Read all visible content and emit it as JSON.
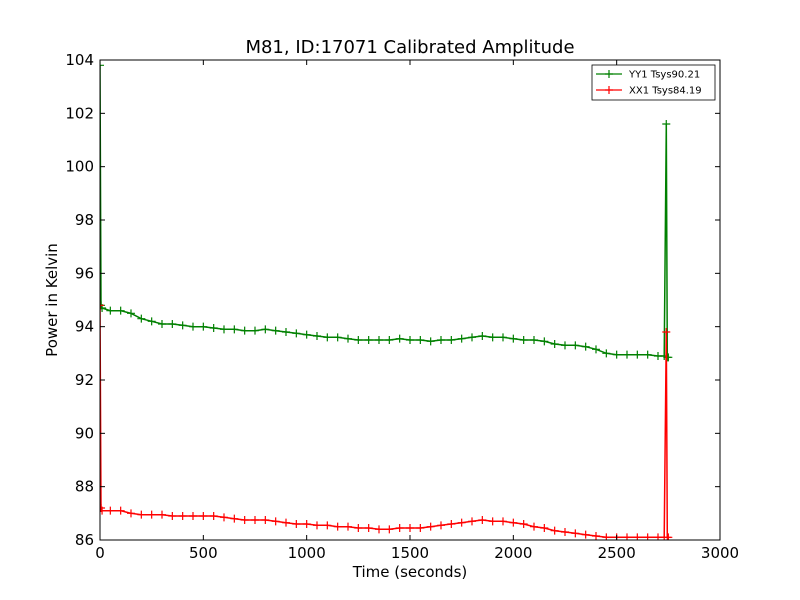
{
  "chart_data": {
    "type": "line",
    "title": "M81, ID:17071 Calibrated Amplitude",
    "xlabel": "Time (seconds)",
    "ylabel": "Power in Kelvin",
    "xlim": [
      0,
      3000
    ],
    "ylim": [
      86,
      104
    ],
    "xticks": [
      0,
      500,
      1000,
      1500,
      2000,
      2500,
      3000
    ],
    "yticks": [
      86,
      88,
      90,
      92,
      94,
      96,
      98,
      100,
      102,
      104
    ],
    "grid": false,
    "legend_position": "top-right",
    "series": [
      {
        "name": "YY1 Tsys90.21",
        "color": "#008000",
        "marker": "+",
        "x": [
          0,
          5,
          10,
          50,
          100,
          150,
          200,
          250,
          300,
          350,
          400,
          450,
          500,
          550,
          600,
          650,
          700,
          750,
          800,
          850,
          900,
          950,
          1000,
          1050,
          1100,
          1150,
          1200,
          1250,
          1300,
          1350,
          1400,
          1450,
          1500,
          1550,
          1600,
          1650,
          1700,
          1750,
          1800,
          1850,
          1900,
          1950,
          2000,
          2050,
          2100,
          2150,
          2200,
          2250,
          2300,
          2350,
          2400,
          2450,
          2500,
          2550,
          2600,
          2650,
          2700,
          2730,
          2740,
          2745,
          2750
        ],
        "y": [
          103.8,
          94.8,
          94.7,
          94.6,
          94.6,
          94.5,
          94.3,
          94.2,
          94.1,
          94.1,
          94.05,
          94.0,
          94.0,
          93.95,
          93.9,
          93.9,
          93.85,
          93.85,
          93.9,
          93.85,
          93.8,
          93.75,
          93.7,
          93.65,
          93.6,
          93.6,
          93.55,
          93.5,
          93.5,
          93.5,
          93.5,
          93.55,
          93.5,
          93.5,
          93.45,
          93.5,
          93.5,
          93.55,
          93.6,
          93.65,
          93.6,
          93.6,
          93.55,
          93.5,
          93.5,
          93.45,
          93.35,
          93.3,
          93.3,
          93.25,
          93.15,
          93.0,
          92.95,
          92.95,
          92.95,
          92.95,
          92.9,
          92.9,
          101.6,
          92.85,
          92.85
        ]
      },
      {
        "name": "XX1 Tsys84.19",
        "color": "#ff0000",
        "marker": "+",
        "x": [
          0,
          5,
          10,
          50,
          100,
          150,
          200,
          250,
          300,
          350,
          400,
          450,
          500,
          550,
          600,
          650,
          700,
          750,
          800,
          850,
          900,
          950,
          1000,
          1050,
          1100,
          1150,
          1200,
          1250,
          1300,
          1350,
          1400,
          1450,
          1500,
          1550,
          1600,
          1650,
          1700,
          1750,
          1800,
          1850,
          1900,
          1950,
          2000,
          2050,
          2100,
          2150,
          2200,
          2250,
          2300,
          2350,
          2400,
          2450,
          2500,
          2550,
          2600,
          2650,
          2700,
          2730,
          2740,
          2745,
          2750
        ],
        "y": [
          94.8,
          87.2,
          87.1,
          87.1,
          87.1,
          87.0,
          86.95,
          86.95,
          86.95,
          86.9,
          86.9,
          86.9,
          86.9,
          86.9,
          86.85,
          86.8,
          86.75,
          86.75,
          86.75,
          86.7,
          86.65,
          86.6,
          86.6,
          86.55,
          86.55,
          86.5,
          86.5,
          86.45,
          86.45,
          86.4,
          86.4,
          86.45,
          86.45,
          86.45,
          86.5,
          86.55,
          86.6,
          86.65,
          86.7,
          86.75,
          86.7,
          86.7,
          86.65,
          86.6,
          86.5,
          86.45,
          86.35,
          86.3,
          86.25,
          86.2,
          86.15,
          86.1,
          86.1,
          86.1,
          86.1,
          86.1,
          86.1,
          86.1,
          93.8,
          86.1,
          86.1
        ]
      }
    ]
  }
}
